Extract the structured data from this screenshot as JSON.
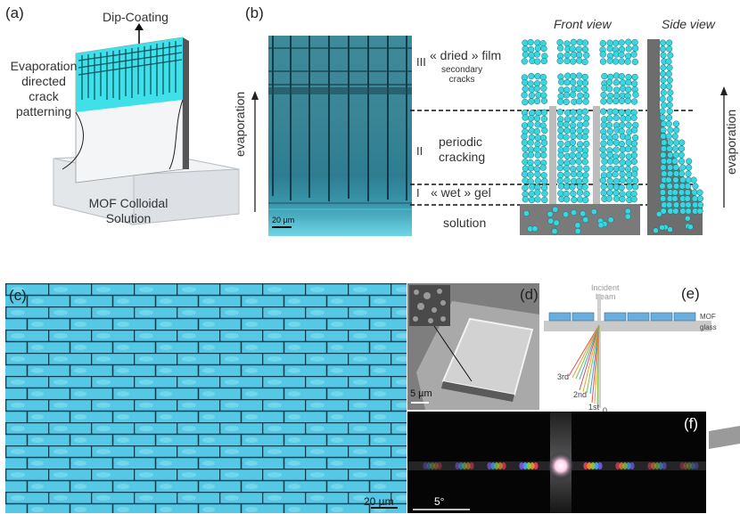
{
  "panel_a": {
    "label": "(a)",
    "dip_coating": "Dip-Coating",
    "evap_lines": [
      "Evaporation",
      "directed",
      "crack",
      "patterning"
    ],
    "solution_lines": [
      "MOF Colloidal",
      "Solution"
    ]
  },
  "panel_b": {
    "label": "(b)",
    "front_view": "Front view",
    "side_view": "Side view",
    "roman_3": "III",
    "roman_2": "II",
    "roman_1": "I",
    "dried_film": "« dried » film",
    "secondary_cracks": "secondary\ncracks",
    "periodic": "periodic",
    "cracking": "cracking",
    "wet_gel": "« wet » gel",
    "solution": "solution",
    "evaporation_left": "evaporation",
    "evaporation_right": "evaporation",
    "scalebar": "20 µm"
  },
  "panel_c": {
    "label": "(c)",
    "scalebar": "20 µm"
  },
  "panel_d": {
    "label": "(d)",
    "scalebar": "5 µm"
  },
  "panel_e": {
    "label": "(e)",
    "incident": "Incident",
    "beam": "beam",
    "mof": "MOF",
    "glass": "glass",
    "order_3": "3rd",
    "order_2": "2nd",
    "order_1": "1st",
    "order_0": "0"
  },
  "panel_f": {
    "label": "(f)",
    "scalebar": "5°"
  },
  "colors": {
    "mof_cyan": "#39d6e0",
    "crack_blue": "#4fc8e8",
    "tile_cyan": "#58cde6",
    "gray": "#6d6d6d"
  }
}
